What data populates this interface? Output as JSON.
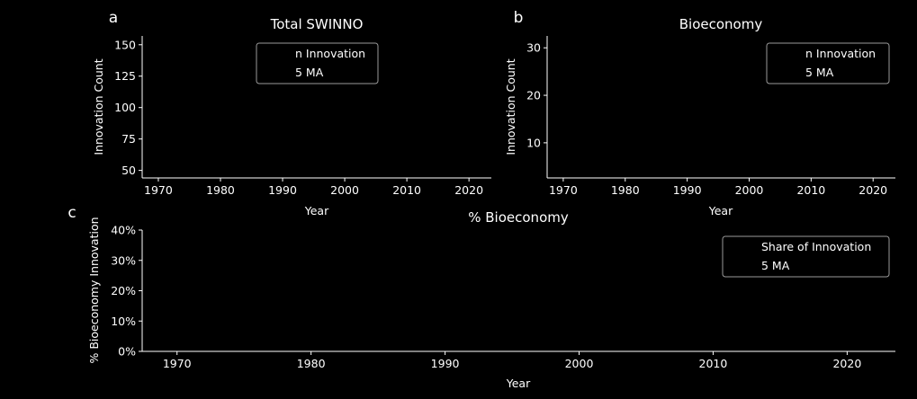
{
  "chart_data": [
    {
      "panel_label": "a",
      "type": "bar",
      "title": "Total SWINNO",
      "xlabel": "Year",
      "ylabel": "Innovation Count",
      "xlim": [
        1967.4,
        2023.6
      ],
      "ylim": [
        44,
        157
      ],
      "xticks": [
        1970,
        1980,
        1990,
        2000,
        2010,
        2020
      ],
      "xtick_labels": [
        "1970",
        "1980",
        "1990",
        "2000",
        "2010",
        "2020"
      ],
      "yticks": [
        50,
        75,
        100,
        125,
        150
      ],
      "ytick_labels": [
        "50",
        "75",
        "100",
        "125",
        "150"
      ],
      "legend": {
        "placement": "top-right",
        "entries": [
          "n Innovation",
          "5 MA"
        ]
      },
      "series": [
        {
          "name": "n Innovation",
          "values": []
        },
        {
          "name": "5 MA",
          "values": []
        }
      ],
      "grid": false
    },
    {
      "panel_label": "b",
      "type": "bar",
      "title": "Bioeconomy",
      "xlabel": "Year",
      "ylabel": "Innovation Count",
      "xlim": [
        1967.4,
        2023.6
      ],
      "ylim": [
        2.6,
        32.5
      ],
      "xticks": [
        1970,
        1980,
        1990,
        2000,
        2010,
        2020
      ],
      "xtick_labels": [
        "1970",
        "1980",
        "1990",
        "2000",
        "2010",
        "2020"
      ],
      "yticks": [
        10,
        20,
        30
      ],
      "ytick_labels": [
        "10",
        "20",
        "30"
      ],
      "legend": {
        "placement": "top-right",
        "entries": [
          "n Innovation",
          "5 MA"
        ]
      },
      "series": [
        {
          "name": "n Innovation",
          "values": []
        },
        {
          "name": "5 MA",
          "values": []
        }
      ],
      "grid": false
    },
    {
      "panel_label": "c",
      "type": "line",
      "title": "% Bioeconomy",
      "xlabel": "Year",
      "ylabel": "% Bioeconomy Innovation",
      "xlim": [
        1967.4,
        2023.6
      ],
      "ylim": [
        0,
        0.4
      ],
      "xticks": [
        1970,
        1980,
        1990,
        2000,
        2010,
        2020
      ],
      "xtick_labels": [
        "1970",
        "1980",
        "1990",
        "2000",
        "2010",
        "2020"
      ],
      "yticks": [
        0,
        0.1,
        0.2,
        0.3,
        0.4
      ],
      "ytick_labels": [
        "0%",
        "10%",
        "20%",
        "30%",
        "40%"
      ],
      "legend": {
        "placement": "top-right",
        "entries": [
          "Share of Innovation",
          "5 MA"
        ]
      },
      "series": [
        {
          "name": "Share of Innovation",
          "values": []
        },
        {
          "name": "5 MA",
          "values": []
        }
      ],
      "grid": false
    }
  ]
}
